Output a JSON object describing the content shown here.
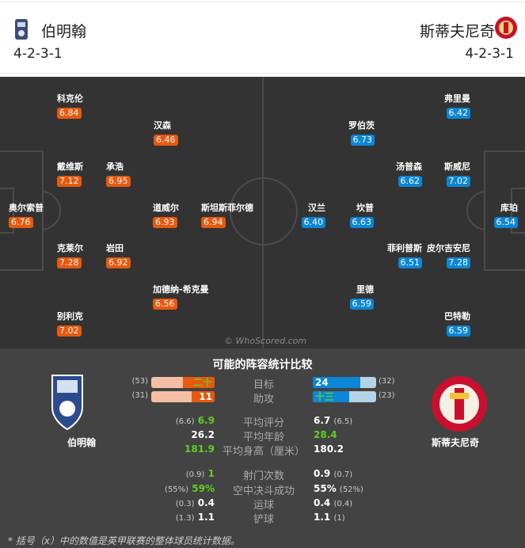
{
  "home": {
    "name": "伯明翰",
    "formation": "4-2-3-1",
    "color": "#e8580e"
  },
  "away": {
    "name": "斯蒂夫尼奇",
    "formation": "4-2-3-1",
    "color": "#0c86d6"
  },
  "home_players": [
    {
      "name": "科克伦",
      "rating": "6.84"
    },
    {
      "name": "汉森",
      "rating": "6.46"
    },
    {
      "name": "戴维斯",
      "rating": "7.12"
    },
    {
      "name": "承浩",
      "rating": "6.95"
    },
    {
      "name": "奥尔索普",
      "rating": "6.76"
    },
    {
      "name": "道威尔",
      "rating": "6.93"
    },
    {
      "name": "斯坦斯菲尔德",
      "rating": "6.94"
    },
    {
      "name": "克莱尔",
      "rating": "7.28"
    },
    {
      "name": "岩田",
      "rating": "6.92"
    },
    {
      "name": "加德纳-希克曼",
      "rating": "6.56"
    },
    {
      "name": "别利克",
      "rating": "7.02"
    }
  ],
  "away_players": [
    {
      "name": "弗里曼",
      "rating": "6.42"
    },
    {
      "name": "罗伯茨",
      "rating": "6.73"
    },
    {
      "name": "汤普森",
      "rating": "6.62"
    },
    {
      "name": "斯威尼",
      "rating": "7.02"
    },
    {
      "name": "库珀",
      "rating": "6.54"
    },
    {
      "name": "汉兰",
      "rating": "6.40"
    },
    {
      "name": "坎普",
      "rating": "6.63"
    },
    {
      "name": "菲利普斯",
      "rating": "6.51"
    },
    {
      "name": "皮尔吉安尼",
      "rating": "7.28"
    },
    {
      "name": "里德",
      "rating": "6.59"
    },
    {
      "name": "巴特勒",
      "rating": "6.59"
    }
  ],
  "watermark": "© WhoScored.com",
  "comparison": {
    "title": "可能的阵容统计比较",
    "bars": [
      {
        "label": "目标",
        "home": "二十七",
        "home_avg": "(53)",
        "home_fill": 0.5,
        "away": "24",
        "away_avg": "(32)",
        "away_fill": 0.75
      },
      {
        "label": "助攻",
        "home": "11",
        "home_avg": "(31)",
        "home_fill": 0.36,
        "away": "十三",
        "away_avg": "(23)",
        "away_fill": 0.58
      }
    ],
    "rows": [
      {
        "label": "平均评分",
        "home_avg": "(6.6)",
        "home": "6.9",
        "away": "6.7",
        "away_avg": "(6.5)",
        "better": "home"
      },
      {
        "label": "平均年龄",
        "home_avg": "",
        "home": "26.2",
        "away": "28.4",
        "away_avg": "",
        "better": "away"
      },
      {
        "label": "平均身高（厘米）",
        "home_avg": "",
        "home": "181.9",
        "away": "180.2",
        "away_avg": "",
        "better": "home"
      },
      {
        "label": "射门次数",
        "home_avg": "(0.9)",
        "home": "1",
        "away": "0.9",
        "away_avg": "(0.7)",
        "better": "home"
      },
      {
        "label": "空中决斗成功",
        "home_avg": "(55%)",
        "home": "59%",
        "away": "55%",
        "away_avg": "(52%)",
        "better": "home"
      },
      {
        "label": "运球",
        "home_avg": "(0.3)",
        "home": "0.4",
        "away": "0.4",
        "away_avg": "(0.4)",
        "better": ""
      },
      {
        "label": "铲球",
        "home_avg": "(1.3)",
        "home": "1.1",
        "away": "1.1",
        "away_avg": "(1)",
        "better": ""
      }
    ],
    "footnote": "* 括号（x）中的数值是英甲联赛的整体球员统计数据。"
  }
}
